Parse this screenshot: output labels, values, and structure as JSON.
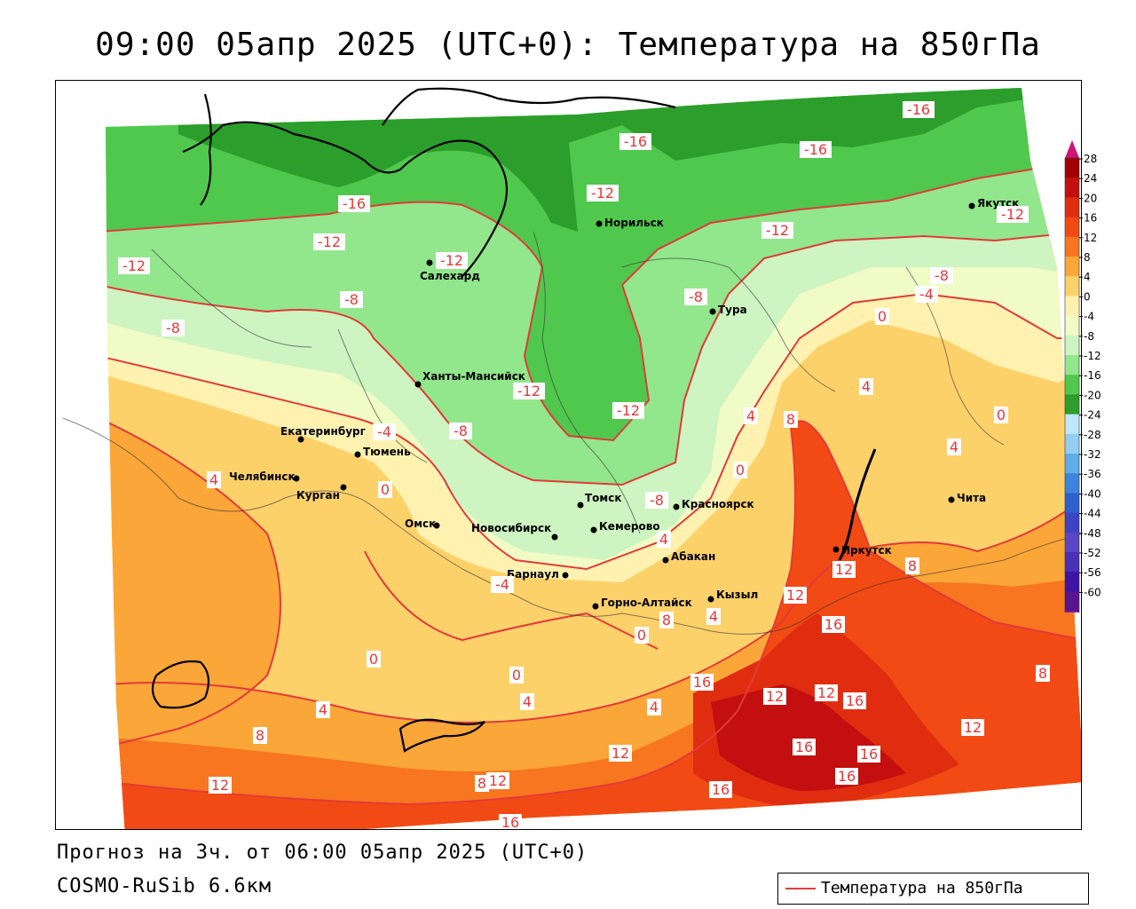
{
  "title": "09:00 05апр 2025 (UTC+0): Температура на 850гПа",
  "footer": {
    "forecast": "Прогноз на 3ч. от 06:00 05апр 2025 (UTC+0)",
    "model": "COSMO-RuSib 6.6км"
  },
  "legend": {
    "label": "Температура на 850гПа",
    "line_color": "#e23a3a"
  },
  "colorbar": {
    "ticks": [
      "28",
      "24",
      "20",
      "16",
      "12",
      "8",
      "4",
      "0",
      "-4",
      "-8",
      "-12",
      "-16",
      "-20",
      "-24",
      "-28",
      "-32",
      "-36",
      "-40",
      "-44",
      "-48",
      "-52",
      "-56",
      "-60"
    ],
    "colors": [
      "#a30000",
      "#c30f0f",
      "#e02d10",
      "#f24a14",
      "#f7761f",
      "#fba638",
      "#fdd16a",
      "#fff2b0",
      "#f0fbc6",
      "#cdf4c1",
      "#92e68c",
      "#50c84e",
      "#2c9e2c",
      "#bfe6fa",
      "#93cef2",
      "#5fadea",
      "#3a86de",
      "#2f60cf",
      "#3b44c7",
      "#5a46c6",
      "#4a2fb8",
      "#3e14a8",
      "#5b1490",
      "#8a1fb0"
    ],
    "top_arrow_color": "#cc1577",
    "bottom_arrow_color": "#a224c8"
  },
  "cities": [
    {
      "name": "Салехард"
    },
    {
      "name": "Норильск"
    },
    {
      "name": "Якутск"
    },
    {
      "name": "Тура"
    },
    {
      "name": "Ханты-Мансийск"
    },
    {
      "name": "Екатеринбург"
    },
    {
      "name": "Тюмень"
    },
    {
      "name": "Челябинск"
    },
    {
      "name": "Курган"
    },
    {
      "name": "Омск"
    },
    {
      "name": "Новосибирск"
    },
    {
      "name": "Томск"
    },
    {
      "name": "Кемерово"
    },
    {
      "name": "Красноярск"
    },
    {
      "name": "Барнаул"
    },
    {
      "name": "Абакан"
    },
    {
      "name": "Горно-Алтайск"
    },
    {
      "name": "Кызыл"
    },
    {
      "name": "Иркутск"
    },
    {
      "name": "Чита"
    }
  ],
  "isotherm_labels": [
    "-16",
    "-16",
    "-16",
    "-16",
    "-12",
    "-12",
    "-12",
    "-12",
    "-12",
    "-12",
    "-12",
    "-12",
    "-8",
    "-8",
    "-8",
    "-8",
    "-8",
    "-8",
    "-4",
    "-4",
    "-4",
    "0",
    "0",
    "0",
    "0",
    "0",
    "0",
    "0",
    "4",
    "4",
    "4",
    "4",
    "4",
    "4",
    "4",
    "4",
    "4",
    "8",
    "8",
    "8",
    "8",
    "8",
    "8",
    "12",
    "12",
    "12",
    "12",
    "12",
    "12",
    "12",
    "12",
    "16",
    "16",
    "16",
    "16",
    "16",
    "16",
    "16",
    "16"
  ]
}
